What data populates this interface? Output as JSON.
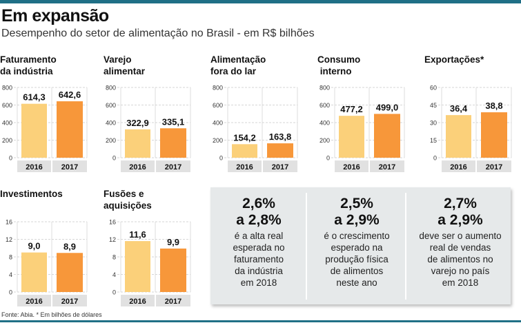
{
  "header": {
    "title": "Em expansão",
    "subtitle": "Desempenho do setor de alimentação no Brasil - em R$ bilhões"
  },
  "colors": {
    "bar_2016": "#fbd07a",
    "bar_2017": "#f7973a",
    "accent": "#1f6f86",
    "label_band": "#e1e1e1"
  },
  "chart_data": [
    {
      "type": "bar",
      "title": "Faturamento\nda indústria",
      "categories": [
        "2016",
        "2017"
      ],
      "values": [
        614.3,
        642.6
      ],
      "labels": [
        "614,3",
        "642,6"
      ],
      "ylim": [
        0,
        800
      ],
      "yticks": [
        0,
        200,
        400,
        600,
        800
      ]
    },
    {
      "type": "bar",
      "title": "Varejo\nalimentar",
      "categories": [
        "2016",
        "2017"
      ],
      "values": [
        322.9,
        335.1
      ],
      "labels": [
        "322,9",
        "335,1"
      ],
      "ylim": [
        0,
        800
      ],
      "yticks": [
        0,
        200,
        400,
        600,
        800
      ]
    },
    {
      "type": "bar",
      "title": "Alimentação\nfora do lar",
      "categories": [
        "2016",
        "2017"
      ],
      "values": [
        154.2,
        163.8
      ],
      "labels": [
        "154,2",
        "163,8"
      ],
      "ylim": [
        0,
        800
      ],
      "yticks": [
        0,
        200,
        400,
        600,
        800
      ]
    },
    {
      "type": "bar",
      "title": "Consumo\n interno",
      "categories": [
        "2016",
        "2017"
      ],
      "values": [
        477.2,
        499.0
      ],
      "labels": [
        "477,2",
        "499,0"
      ],
      "ylim": [
        0,
        800
      ],
      "yticks": [
        0,
        200,
        400,
        600,
        800
      ]
    },
    {
      "type": "bar",
      "title": "Exportações*",
      "categories": [
        "2016",
        "2017"
      ],
      "values": [
        36.4,
        38.8
      ],
      "labels": [
        "36,4",
        "38,8"
      ],
      "ylim": [
        0,
        60
      ],
      "yticks": [
        0,
        15,
        30,
        45,
        60
      ]
    },
    {
      "type": "bar",
      "title": "Investimentos",
      "categories": [
        "2016",
        "2017"
      ],
      "values": [
        9.0,
        8.9
      ],
      "labels": [
        "9,0",
        "8,9"
      ],
      "ylim": [
        0,
        16
      ],
      "yticks": [
        0,
        4,
        8,
        12,
        16
      ]
    },
    {
      "type": "bar",
      "title": "Fusões e\naquisições",
      "categories": [
        "2016",
        "2017"
      ],
      "values": [
        11.6,
        9.9
      ],
      "labels": [
        "11,6",
        "9,9"
      ],
      "ylim": [
        0,
        16
      ],
      "yticks": [
        0,
        4,
        8,
        12,
        16
      ]
    }
  ],
  "info": [
    {
      "big1": "2,6%",
      "big2": "a 2,8%",
      "lines": [
        "é a alta real",
        "esperada no",
        "faturamento",
        "da indústria",
        "em 2018"
      ]
    },
    {
      "big1": "2,5%",
      "big2": "a 2,9%",
      "lines": [
        "é o crescimento",
        "esperado na",
        "produção física",
        "de alimentos",
        "neste ano"
      ]
    },
    {
      "big1": "2,7%",
      "big2": "a 2,9%",
      "lines": [
        "deve ser o aumento",
        "real de vendas",
        "de alimentos no",
        "varejo no país",
        "em 2018"
      ]
    }
  ],
  "footnote": "Fonte: Abia. * Em bilhões de dólares"
}
